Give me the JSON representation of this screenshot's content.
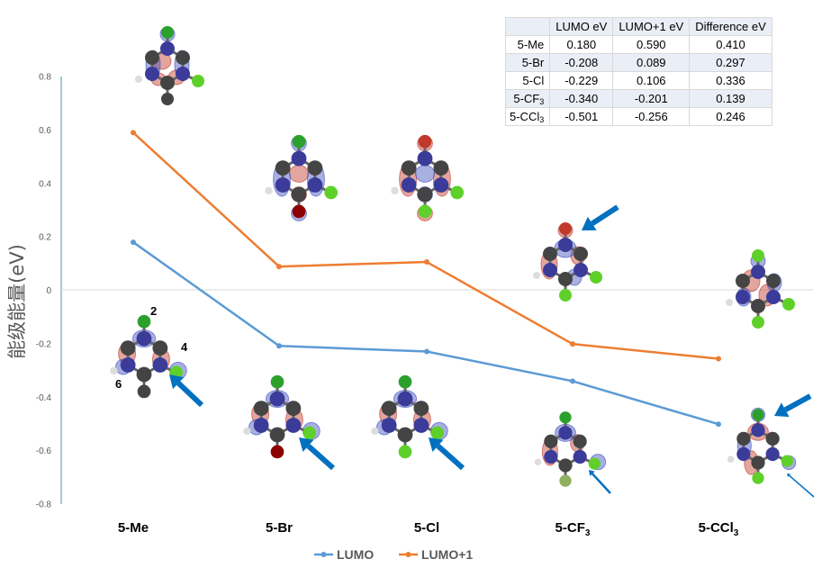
{
  "chart_data": {
    "type": "line",
    "title": "",
    "ylabel": "能级能量(eV)",
    "xlabel": "",
    "categories": [
      {
        "base": "5-Me",
        "sub": ""
      },
      {
        "base": "5-Br",
        "sub": ""
      },
      {
        "base": "5-Cl",
        "sub": ""
      },
      {
        "base": "5-CF",
        "sub": "3"
      },
      {
        "base": "5-CCl",
        "sub": "3"
      }
    ],
    "series": [
      {
        "name": "LUMO",
        "color": "#5b9bd5",
        "values": [
          0.18,
          -0.208,
          -0.229,
          -0.34,
          -0.501
        ]
      },
      {
        "name": "LUMO+1",
        "color": "#ed7d31",
        "values": [
          0.59,
          0.089,
          0.106,
          -0.201,
          -0.256
        ]
      }
    ],
    "ylim": [
      -0.8,
      0.8
    ],
    "ytick_labels": [
      "0.8",
      "0.6",
      "0.4",
      "0.2",
      "0",
      "-0.2",
      "-0.4",
      "-0.6",
      "-0.8"
    ],
    "legend_position": "bottom",
    "atom_labels": [
      "2",
      "4",
      "6"
    ]
  },
  "table": {
    "headers": [
      "",
      "LUMO eV",
      "LUMO+1 eV",
      "Difference eV"
    ],
    "rows": [
      {
        "label": "5-Me",
        "label_sub": "",
        "lumo": "0.180",
        "lumo1": "0.590",
        "diff": "0.410"
      },
      {
        "label": "5-Br",
        "label_sub": "",
        "lumo": "-0.208",
        "lumo1": "0.089",
        "diff": "0.297"
      },
      {
        "label": "5-Cl",
        "label_sub": "",
        "lumo": "-0.229",
        "lumo1": "0.106",
        "diff": "0.336"
      },
      {
        "label": "5-CF",
        "label_sub": "3",
        "lumo": "-0.340",
        "lumo1": "-0.201",
        "diff": "0.139"
      },
      {
        "label": "5-CCl",
        "label_sub": "3",
        "lumo": "-0.501",
        "lumo1": "-0.256",
        "diff": "0.246"
      }
    ]
  }
}
